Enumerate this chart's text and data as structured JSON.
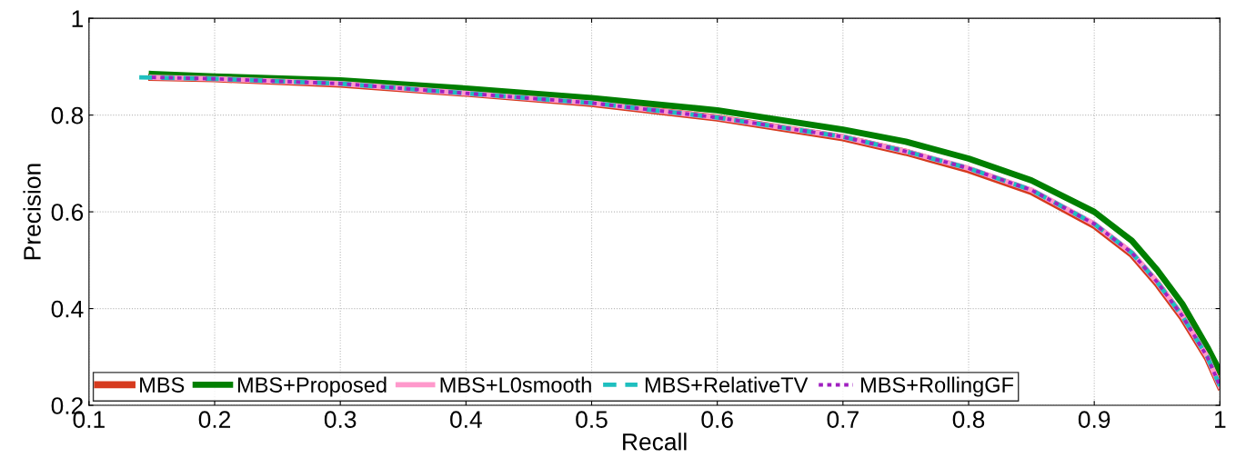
{
  "chart_data": {
    "type": "line",
    "xlabel": "Recall",
    "ylabel": "Precision",
    "xlim": [
      0.1,
      1
    ],
    "ylim": [
      0.2,
      1
    ],
    "xticks": [
      0.1,
      0.2,
      0.3,
      0.4,
      0.5,
      0.6,
      0.7,
      0.8,
      0.9,
      1
    ],
    "yticks": [
      0.2,
      0.4,
      0.6,
      0.8,
      1
    ],
    "grid": true,
    "legend": "bottom",
    "series": [
      {
        "name": "MBS",
        "color": "#d63a1e",
        "line_style": "solid",
        "x": [
          0.15,
          0.2,
          0.3,
          0.4,
          0.5,
          0.6,
          0.7,
          0.75,
          0.8,
          0.85,
          0.9,
          0.93,
          0.95,
          0.97,
          0.99,
          1.0
        ],
        "values": [
          0.878,
          0.875,
          0.864,
          0.845,
          0.824,
          0.794,
          0.753,
          0.723,
          0.687,
          0.642,
          0.572,
          0.512,
          0.452,
          0.382,
          0.298,
          0.24
        ]
      },
      {
        "name": "MBS+Proposed",
        "color": "#007f00",
        "line_style": "solid",
        "x": [
          0.15,
          0.2,
          0.3,
          0.4,
          0.5,
          0.6,
          0.7,
          0.75,
          0.8,
          0.85,
          0.9,
          0.93,
          0.95,
          0.97,
          0.99,
          1.0
        ],
        "values": [
          0.885,
          0.88,
          0.872,
          0.855,
          0.835,
          0.81,
          0.77,
          0.745,
          0.71,
          0.665,
          0.6,
          0.54,
          0.48,
          0.41,
          0.32,
          0.27
        ]
      },
      {
        "name": "MBS+L0smooth",
        "color": "#ff99cc",
        "line_style": "solid",
        "x": [
          0.15,
          0.2,
          0.3,
          0.4,
          0.5,
          0.6,
          0.7,
          0.75,
          0.8,
          0.85,
          0.9,
          0.93,
          0.95,
          0.97,
          0.99,
          1.0
        ],
        "values": [
          0.878,
          0.875,
          0.865,
          0.845,
          0.825,
          0.795,
          0.755,
          0.725,
          0.69,
          0.645,
          0.575,
          0.515,
          0.455,
          0.385,
          0.3,
          0.24
        ]
      },
      {
        "name": "MBS+RelativeTV",
        "color": "#1fbfbf",
        "line_style": "dashed",
        "x": [
          0.14,
          0.2,
          0.3,
          0.4,
          0.5,
          0.6,
          0.7,
          0.75,
          0.8,
          0.85,
          0.9,
          0.93,
          0.95,
          0.97,
          0.99,
          1.0
        ],
        "values": [
          0.878,
          0.875,
          0.865,
          0.845,
          0.825,
          0.795,
          0.755,
          0.725,
          0.69,
          0.645,
          0.575,
          0.515,
          0.455,
          0.385,
          0.3,
          0.24
        ]
      },
      {
        "name": "MBS+RollingGF",
        "color": "#a020c0",
        "line_style": "dotted",
        "x": [
          0.15,
          0.2,
          0.3,
          0.4,
          0.5,
          0.6,
          0.7,
          0.75,
          0.8,
          0.85,
          0.9,
          0.93,
          0.95,
          0.97,
          0.99,
          1.0
        ],
        "values": [
          0.878,
          0.875,
          0.865,
          0.845,
          0.825,
          0.795,
          0.755,
          0.725,
          0.69,
          0.645,
          0.575,
          0.515,
          0.455,
          0.385,
          0.3,
          0.24
        ]
      }
    ]
  }
}
